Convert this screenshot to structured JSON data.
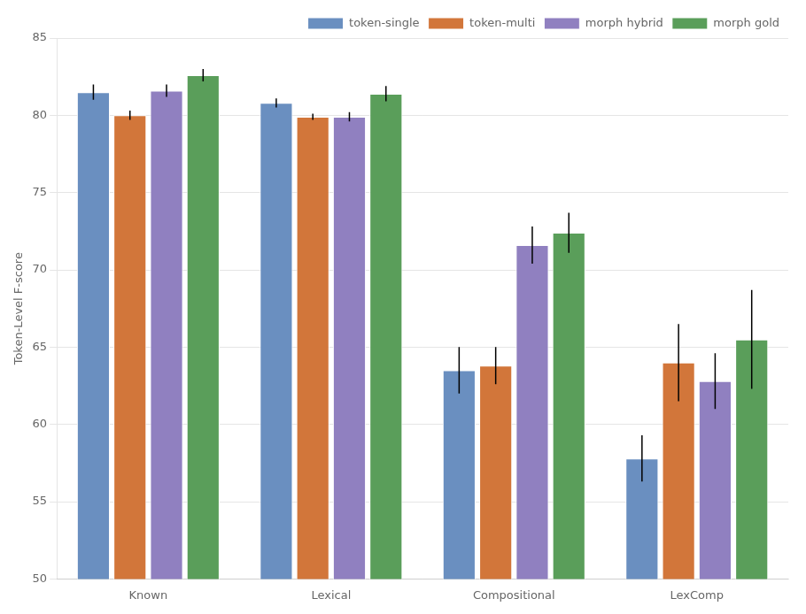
{
  "chart_data": {
    "type": "bar",
    "categories": [
      "Known",
      "Lexical",
      "Compositional",
      "LexComp"
    ],
    "series": [
      {
        "name": "token-single",
        "color": "#6A8FC0",
        "values": [
          81.5,
          80.8,
          63.5,
          57.8
        ],
        "errors": [
          0.5,
          0.3,
          1.5,
          1.5
        ]
      },
      {
        "name": "token-multi",
        "color": "#D2763A",
        "values": [
          80.0,
          79.9,
          63.8,
          64.0
        ],
        "errors": [
          0.3,
          0.2,
          1.2,
          2.5
        ]
      },
      {
        "name": "morph hybrid",
        "color": "#9080C0",
        "values": [
          81.6,
          79.9,
          71.6,
          62.8
        ],
        "errors": [
          0.4,
          0.3,
          1.2,
          1.8
        ]
      },
      {
        "name": "morph gold",
        "color": "#5A9E5A",
        "values": [
          82.6,
          81.4,
          72.4,
          65.5
        ],
        "errors": [
          0.4,
          0.5,
          1.3,
          3.2
        ]
      }
    ],
    "ylabel": "Token-Level F-score",
    "ylim": [
      50,
      85
    ],
    "yticks": [
      50,
      55,
      60,
      65,
      70,
      75,
      80,
      85
    ],
    "grid": true,
    "legend": "upper right"
  }
}
